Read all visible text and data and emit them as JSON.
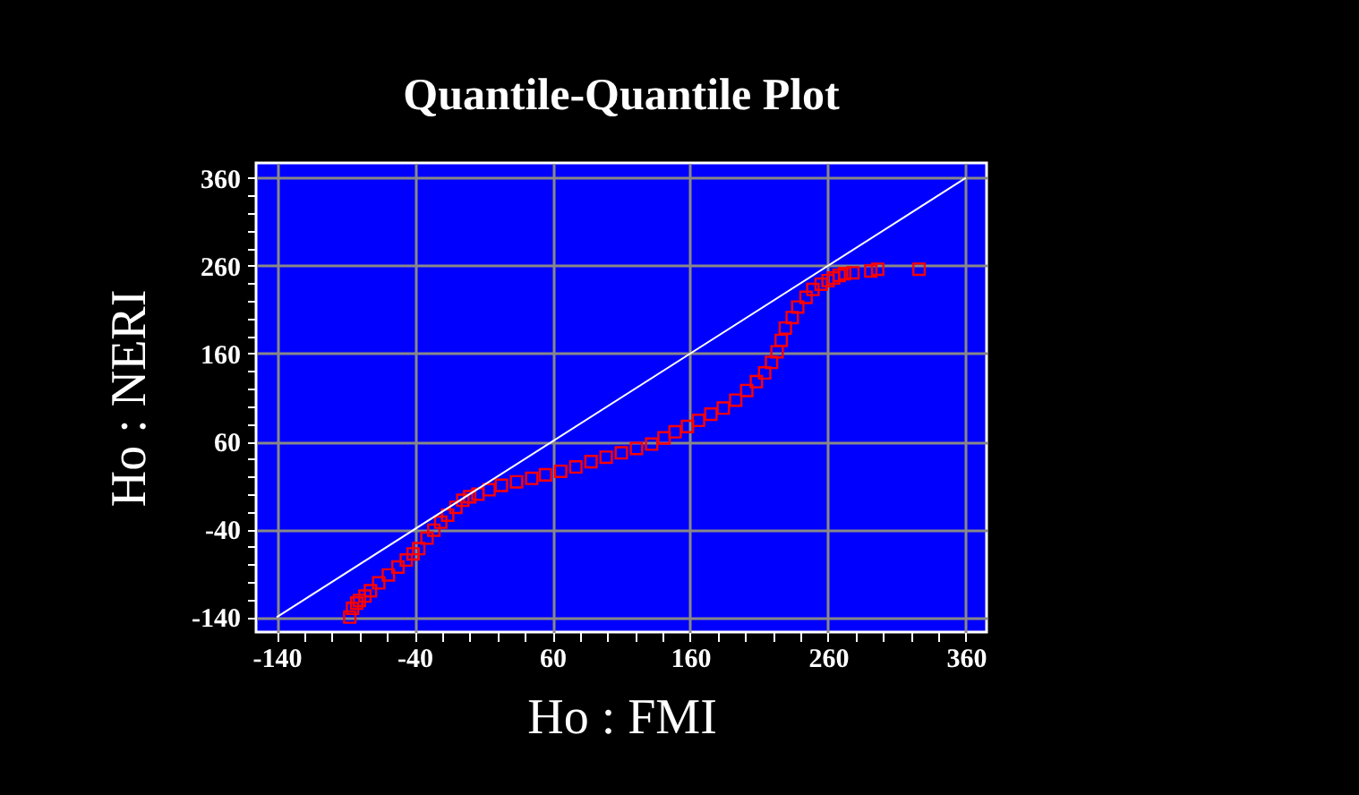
{
  "chart_data": {
    "type": "scatter",
    "title": "Quantile-Quantile Plot",
    "xlabel": "Ho : FMI",
    "ylabel": "Ho : NERI",
    "xlim": [
      -155,
      375
    ],
    "ylim": [
      -157,
      377
    ],
    "xticks": [
      -140,
      {
        "value": -120,
        "label": null
      },
      {
        "value": -100,
        "label": null
      },
      {
        "value": -80,
        "label": null
      },
      {
        "value": -60,
        "label": null
      },
      -40,
      {
        "value": -20,
        "label": null
      },
      {
        "value": 0,
        "label": null
      },
      {
        "value": 20,
        "label": null
      },
      {
        "value": 40,
        "label": null
      },
      60,
      {
        "value": 80,
        "label": null
      },
      {
        "value": 100,
        "label": null
      },
      {
        "value": 120,
        "label": null
      },
      {
        "value": 140,
        "label": null
      },
      160,
      {
        "value": 180,
        "label": null
      },
      {
        "value": 200,
        "label": null
      },
      {
        "value": 220,
        "label": null
      },
      {
        "value": 240,
        "label": null
      },
      260,
      {
        "value": 280,
        "label": null
      },
      {
        "value": 300,
        "label": null
      },
      {
        "value": 320,
        "label": null
      },
      {
        "value": 340,
        "label": null
      },
      360
    ],
    "yticks": [
      -140,
      {
        "value": -120,
        "label": null
      },
      {
        "value": -100,
        "label": null
      },
      {
        "value": -80,
        "label": null
      },
      {
        "value": -60,
        "label": null
      },
      -40,
      {
        "value": -20,
        "label": null
      },
      {
        "value": 0,
        "label": null
      },
      {
        "value": 20,
        "label": null
      },
      {
        "value": 40,
        "label": null
      },
      60,
      {
        "value": 80,
        "label": null
      },
      {
        "value": 100,
        "label": null
      },
      {
        "value": 120,
        "label": null
      },
      {
        "value": 140,
        "label": null
      },
      160,
      {
        "value": 180,
        "label": null
      },
      {
        "value": 200,
        "label": null
      },
      {
        "value": 220,
        "label": null
      },
      {
        "value": 240,
        "label": null
      },
      260,
      {
        "value": 280,
        "label": null
      },
      {
        "value": 300,
        "label": null
      },
      {
        "value": 320,
        "label": null
      },
      {
        "value": 340,
        "label": null
      },
      360
    ],
    "grid": true,
    "marker": "square",
    "series": [
      {
        "color": "#ff0000",
        "x": [
          -87,
          -85,
          -82,
          -80,
          -76,
          -72,
          -66,
          -59,
          -52,
          -46,
          -41,
          -37,
          -31,
          -26,
          -21,
          -16,
          -10,
          -5,
          0,
          6,
          14,
          23,
          34,
          45,
          55,
          66,
          77,
          88,
          99,
          110,
          121,
          132,
          141,
          149,
          158,
          166,
          175,
          184,
          193,
          201,
          208,
          214,
          219,
          223,
          226,
          229,
          234,
          238,
          244,
          249,
          255,
          260,
          264,
          268,
          272,
          278,
          291,
          296,
          326
        ],
        "values": [
          -140,
          -130,
          -124,
          -121,
          -116,
          -110,
          -101,
          -92,
          -83,
          -75,
          -68,
          -62,
          -50,
          -41,
          -32,
          -24,
          -15,
          -7,
          -3,
          0,
          5,
          10,
          14,
          18,
          22,
          26,
          31,
          37,
          42,
          47,
          52,
          57,
          64,
          71,
          77,
          84,
          91,
          98,
          107,
          118,
          128,
          138,
          150,
          162,
          175,
          189,
          201,
          213,
          224,
          233,
          239,
          243,
          246,
          249,
          251,
          252,
          254,
          256,
          256
        ]
      },
      {
        "type": "line",
        "marker": "none",
        "color": "#ffffff",
        "x": [
          -140,
          360
        ],
        "values": [
          -140,
          360
        ]
      }
    ]
  }
}
